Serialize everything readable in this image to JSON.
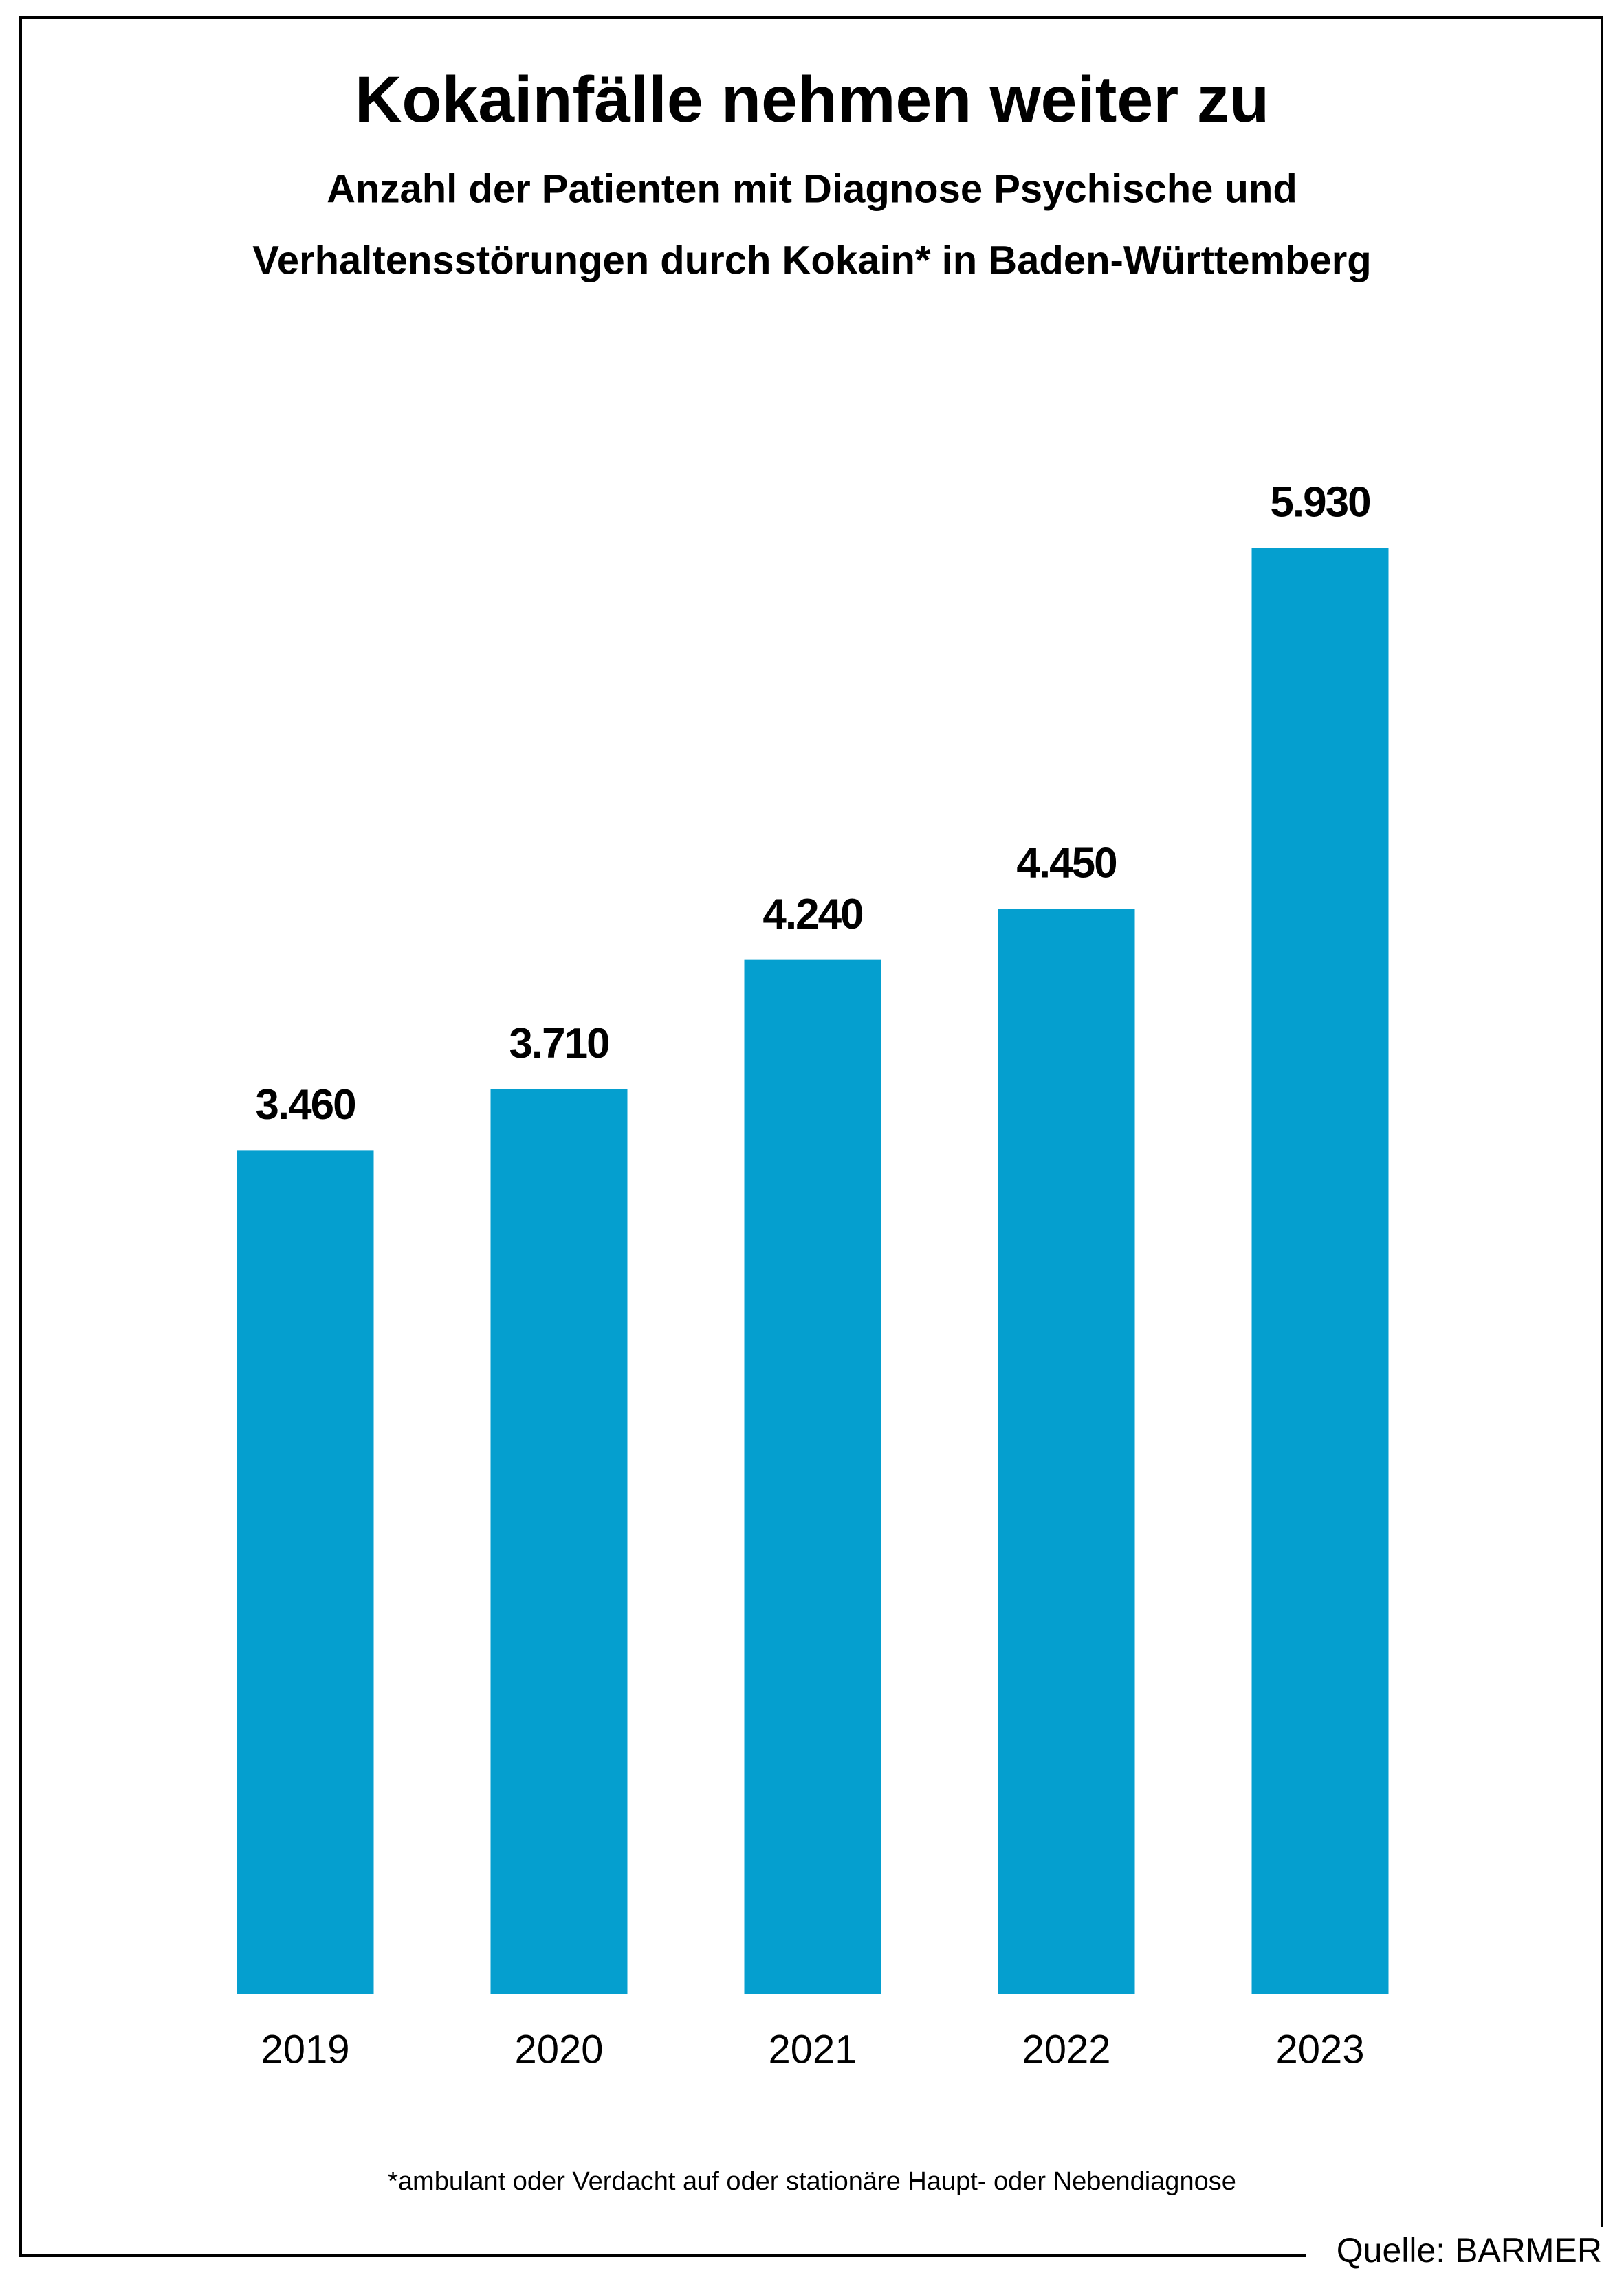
{
  "chart_data": {
    "type": "bar",
    "title": "Kokainfälle nehmen weiter zu",
    "subtitle": [
      "Anzahl der Patienten mit Diagnose Psychische und",
      "Verhaltensstörungen durch Kokain* in Baden-Württemberg"
    ],
    "categories": [
      "2019",
      "2020",
      "2021",
      "2022",
      "2023"
    ],
    "values": [
      3460,
      3710,
      4240,
      4450,
      5930
    ],
    "value_labels": [
      "3.460",
      "3.710",
      "4.240",
      "4.450",
      "5.930"
    ],
    "color": "#059fcf",
    "footnote": "*ambulant oder Verdacht auf oder stationäre Haupt- oder Nebendiagnose",
    "source": "Quelle: BARMER"
  }
}
